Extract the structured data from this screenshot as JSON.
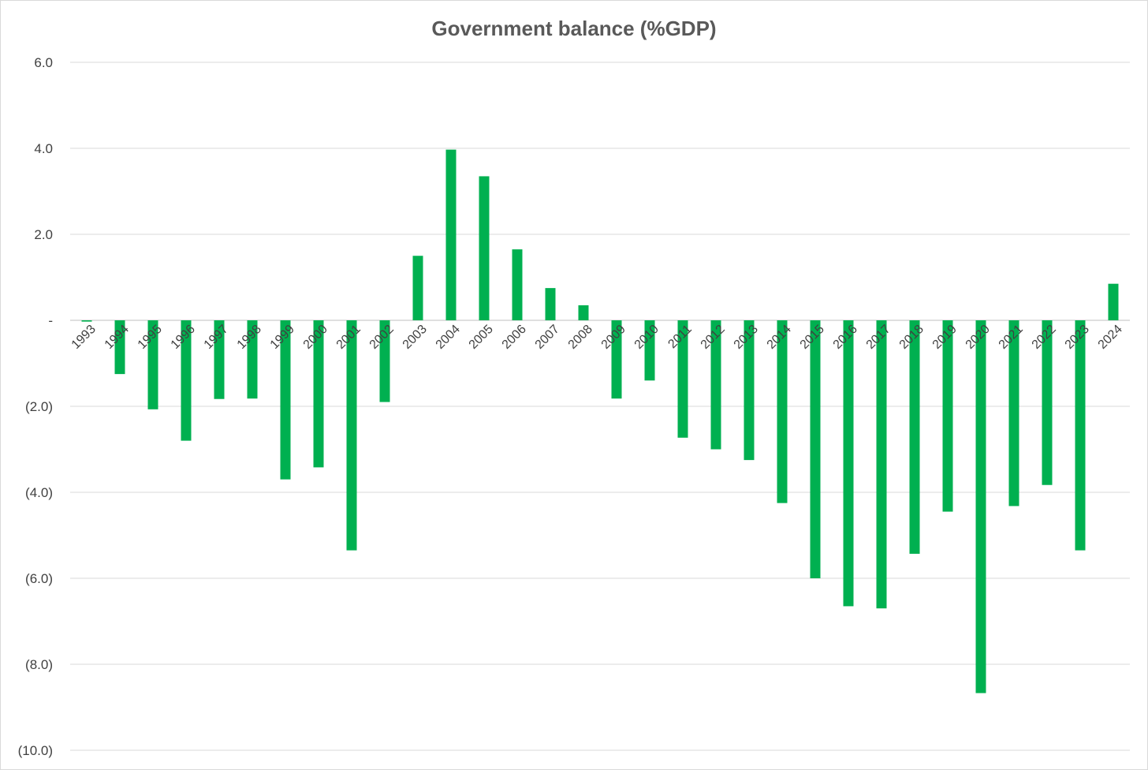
{
  "chart_data": {
    "type": "bar",
    "title": "Government balance (%GDP)",
    "xlabel": "",
    "ylabel": "",
    "ylim": [
      -10,
      6
    ],
    "yticks": [
      {
        "value": 6,
        "label": "6.0"
      },
      {
        "value": 4,
        "label": "4.0"
      },
      {
        "value": 2,
        "label": "2.0"
      },
      {
        "value": 0,
        "label": "-"
      },
      {
        "value": -2,
        "label": "(2.0)"
      },
      {
        "value": -4,
        "label": "(4.0)"
      },
      {
        "value": -6,
        "label": "(6.0)"
      },
      {
        "value": -8,
        "label": "(8.0)"
      },
      {
        "value": -10,
        "label": "(10.0)"
      }
    ],
    "grid": true,
    "legend": "none",
    "bar_color": "#00B050",
    "categories": [
      "1993",
      "1994",
      "1995",
      "1996",
      "1997",
      "1998",
      "1999",
      "2000",
      "2001",
      "2002",
      "2003",
      "2004",
      "2005",
      "2006",
      "2007",
      "2008",
      "2009",
      "2010",
      "2011",
      "2012",
      "2013",
      "2014",
      "2015",
      "2016",
      "2017",
      "2018",
      "2019",
      "2020",
      "2021",
      "2022",
      "2023",
      "2024"
    ],
    "values": [
      -0.03,
      -1.25,
      -2.07,
      -2.8,
      -1.83,
      -1.82,
      -3.7,
      -3.42,
      -5.35,
      -1.9,
      1.5,
      3.97,
      3.35,
      1.65,
      0.75,
      0.35,
      -1.82,
      -1.4,
      -2.73,
      -3.0,
      -3.25,
      -4.25,
      -6.0,
      -6.65,
      -6.7,
      -5.43,
      -4.45,
      -8.67,
      -4.32,
      -3.83,
      -5.35,
      0.85
    ]
  }
}
